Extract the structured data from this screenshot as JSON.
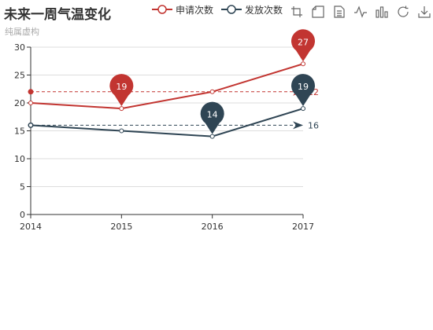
{
  "title": "未来一周气温变化",
  "subtitle": "纯属虚构",
  "legend": [
    {
      "name": "申请次数",
      "color": "#c23531"
    },
    {
      "name": "发放次数",
      "color": "#2f4554"
    }
  ],
  "toolbox": [
    {
      "icon": "rect-zoom-icon",
      "label": "rect zoom"
    },
    {
      "icon": "zoom-reset-icon",
      "label": "zoom reset"
    },
    {
      "icon": "data-view-icon",
      "label": "data view"
    },
    {
      "icon": "line-chart-icon",
      "label": "line chart"
    },
    {
      "icon": "bar-chart-icon",
      "label": "bar chart"
    },
    {
      "icon": "restore-icon",
      "label": "restore"
    },
    {
      "icon": "download-icon",
      "label": "save as image"
    }
  ],
  "chart_data": {
    "type": "line",
    "x": [
      "2014",
      "2015",
      "2016",
      "2017"
    ],
    "ylim": [
      0,
      30
    ],
    "yticks": [
      0,
      5,
      10,
      15,
      20,
      25,
      30
    ],
    "grid": true,
    "legend_position": "top",
    "series": [
      {
        "name": "申请次数",
        "color": "#c23531",
        "values": [
          20,
          19,
          22,
          27
        ],
        "max_point": {
          "x": "2017",
          "label": "27"
        },
        "min_point": {
          "x": "2015",
          "label": "19"
        },
        "average": 22,
        "average_label": "22"
      },
      {
        "name": "发放次数",
        "color": "#2f4554",
        "values": [
          16,
          15,
          14,
          19
        ],
        "max_point": {
          "x": "2017",
          "label": "19"
        },
        "min_point": {
          "x": "2016",
          "label": "14"
        },
        "average": 16,
        "average_label": "16"
      }
    ]
  }
}
